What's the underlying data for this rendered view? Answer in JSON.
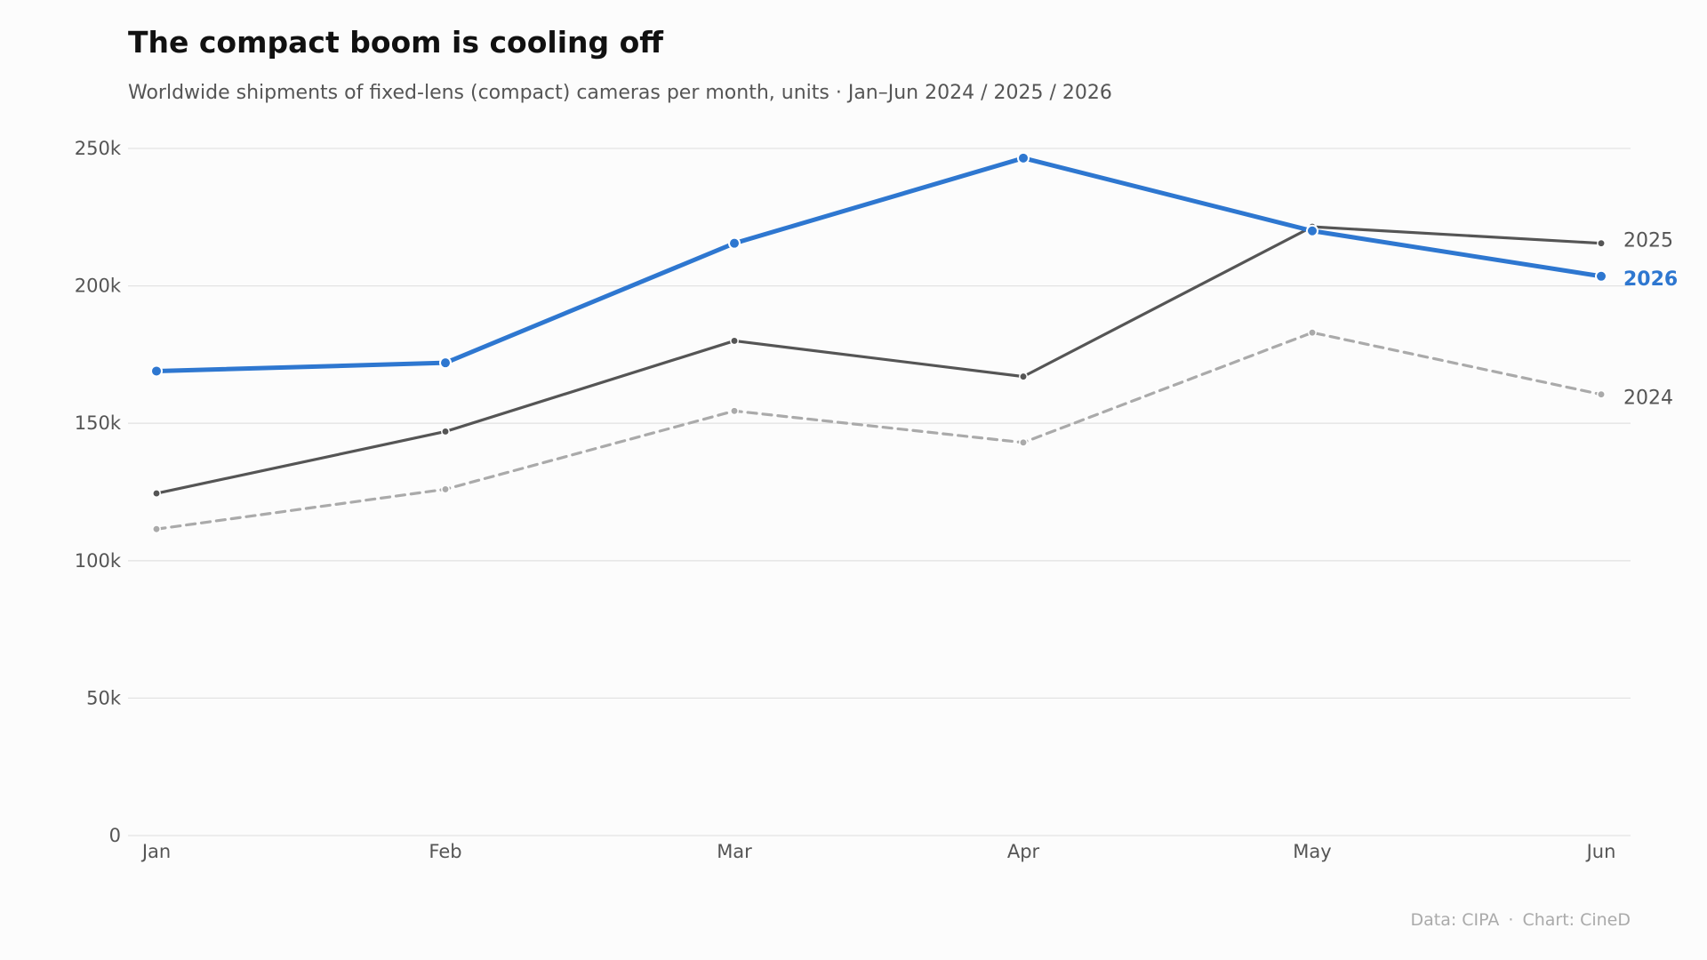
{
  "title": "The compact boom is cooling off",
  "subtitle": "Worldwide shipments of fixed-lens (compact) cameras per month, units · Jan–Jun 2024 / 2025 / 2026",
  "source": {
    "data_label": "Data: CIPA",
    "separator": "·",
    "chart_label": "Chart: CineD"
  },
  "chart_data": {
    "type": "line",
    "title": "The compact boom is cooling off",
    "subtitle": "Worldwide shipments of fixed-lens (compact) cameras per month, units · Jan–Jun 2024 / 2025 / 2026",
    "xlabel": "",
    "ylabel": "",
    "categories": [
      "Jan",
      "Feb",
      "Mar",
      "Apr",
      "May",
      "Jun"
    ],
    "ylim": [
      0,
      250000
    ],
    "yticks": [
      {
        "value": 0,
        "label": "0"
      },
      {
        "value": 50000,
        "label": "50k"
      },
      {
        "value": 100000,
        "label": "100k"
      },
      {
        "value": 150000,
        "label": "150k"
      },
      {
        "value": 200000,
        "label": "200k"
      },
      {
        "value": 250000,
        "label": "250k"
      }
    ],
    "grid": "horizontal",
    "legend": "direct labels at line ends (right)",
    "series": [
      {
        "name": "2024",
        "values": [
          111500,
          126000,
          154500,
          143000,
          183000,
          160500
        ],
        "color": "#aaaaaa",
        "style": "dashed",
        "highlight": false
      },
      {
        "name": "2025",
        "values": [
          124500,
          147000,
          180000,
          167000,
          221500,
          215500
        ],
        "color": "#555555",
        "style": "solid",
        "highlight": false
      },
      {
        "name": "2026",
        "values": [
          169000,
          172000,
          215500,
          246500,
          220000,
          203500
        ],
        "color": "#2e77d0",
        "style": "solid",
        "highlight": true
      }
    ]
  }
}
